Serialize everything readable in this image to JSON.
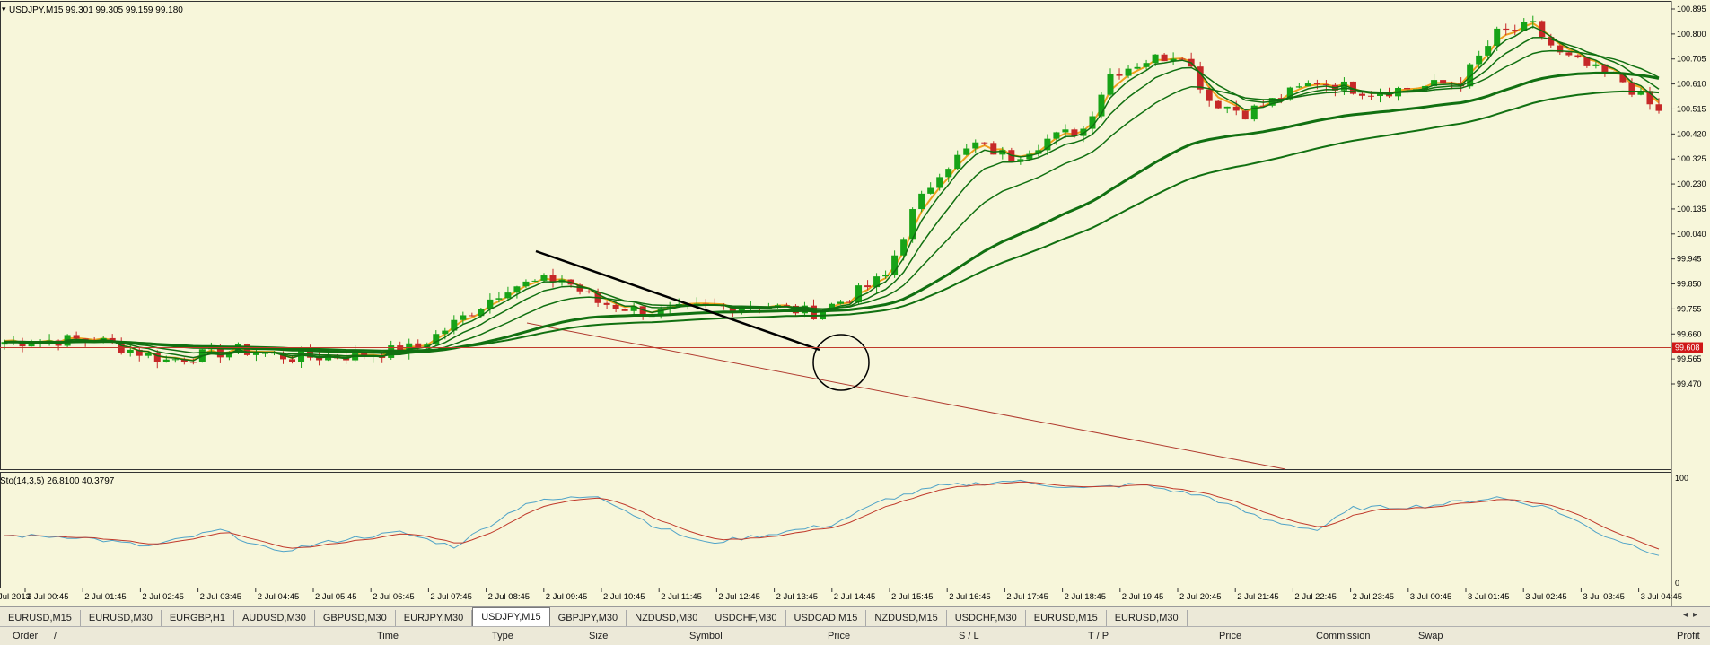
{
  "chart": {
    "title": "USDJPY,M15  99.301 99.305 99.159 99.180",
    "current_price_tag": "99.608",
    "colors": {
      "background": "#f7f6da",
      "bull": "#17a317",
      "bear": "#c62828",
      "ma": "#117011",
      "ma_orange": "#f0a01e",
      "trendline": "#b03a2e",
      "stoch_main": "#4fa3c8",
      "stoch_signal": "#c0392b"
    },
    "price_axis_labels": [
      "100.895",
      "100.800",
      "100.705",
      "100.610",
      "100.515",
      "100.420",
      "100.325",
      "100.230",
      "100.135",
      "100.040",
      "99.945",
      "99.850",
      "99.755",
      "99.660",
      "99.565",
      "99.470"
    ],
    "indicator_label": "Sto(14,3,5) 26.8100 40.3797",
    "indicator_axis_labels": [
      "100",
      "0"
    ],
    "time_labels": [
      "Jul 2013",
      "2 Jul 00:45",
      "2 Jul 01:45",
      "2 Jul 02:45",
      "2 Jul 03:45",
      "2 Jul 04:45",
      "2 Jul 05:45",
      "2 Jul 06:45",
      "2 Jul 07:45",
      "2 Jul 08:45",
      "2 Jul 09:45",
      "2 Jul 10:45",
      "2 Jul 11:45",
      "2 Jul 12:45",
      "2 Jul 13:45",
      "2 Jul 14:45",
      "2 Jul 15:45",
      "2 Jul 16:45",
      "2 Jul 17:45",
      "2 Jul 18:45",
      "2 Jul 19:45",
      "2 Jul 20:45",
      "2 Jul 21:45",
      "2 Jul 22:45",
      "2 Jul 23:45",
      "3 Jul 00:45",
      "3 Jul 01:45",
      "3 Jul 02:45",
      "3 Jul 03:45",
      "3 Jul 04:45"
    ]
  },
  "tabs": [
    "EURUSD,M15",
    "EURUSD,M30",
    "EURGBP,H1",
    "AUDUSD,M30",
    "GBPUSD,M30",
    "EURJPY,M30",
    "USDJPY,M15",
    "GBPJPY,M30",
    "NZDUSD,M30",
    "USDCHF,M30",
    "USDCAD,M15",
    "NZDUSD,M15",
    "USDCHF,M30",
    "EURUSD,M15",
    "EURUSD,M30"
  ],
  "active_tab": 6,
  "terminal_columns": [
    "Order",
    "/",
    "Time",
    "Type",
    "Size",
    "Symbol",
    "Price",
    "S / L",
    "T / P",
    "Price",
    "Commission",
    "Swap",
    "Profit"
  ]
}
